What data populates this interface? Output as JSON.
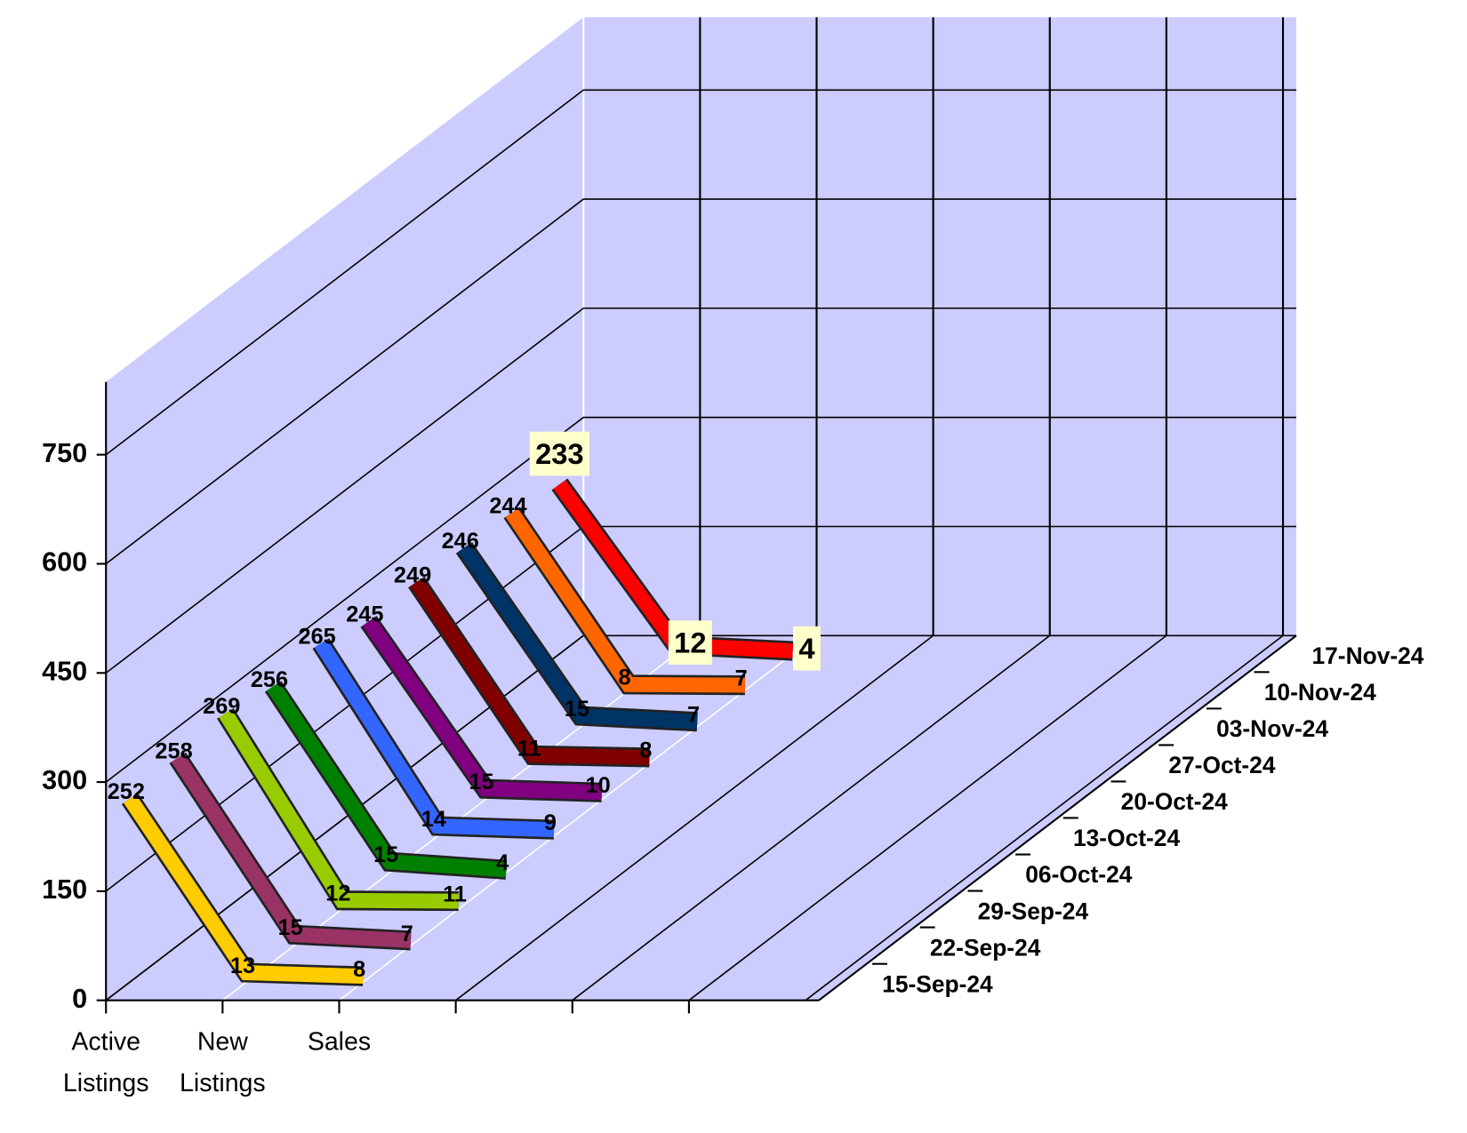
{
  "chart_data": {
    "type": "line3d",
    "categories": [
      "Active Listings",
      "New Listings",
      "Sales"
    ],
    "series": [
      {
        "name": "15-Sep-24",
        "color": "#ffcc00",
        "values": [
          252,
          13,
          8
        ]
      },
      {
        "name": "22-Sep-24",
        "color": "#993366",
        "values": [
          258,
          15,
          7
        ]
      },
      {
        "name": "29-Sep-24",
        "color": "#99cc00",
        "values": [
          269,
          12,
          11
        ]
      },
      {
        "name": "06-Oct-24",
        "color": "#008000",
        "values": [
          256,
          15,
          4
        ]
      },
      {
        "name": "13-Oct-24",
        "color": "#3366ff",
        "values": [
          265,
          14,
          9
        ]
      },
      {
        "name": "20-Oct-24",
        "color": "#800080",
        "values": [
          245,
          15,
          10
        ]
      },
      {
        "name": "27-Oct-24",
        "color": "#800000",
        "values": [
          249,
          11,
          8
        ]
      },
      {
        "name": "03-Nov-24",
        "color": "#003366",
        "values": [
          246,
          15,
          7
        ]
      },
      {
        "name": "10-Nov-24",
        "color": "#ff6600",
        "values": [
          244,
          8,
          7
        ]
      },
      {
        "name": "17-Nov-24",
        "color": "#ff0000",
        "values": [
          233,
          12,
          4
        ]
      }
    ],
    "ylim": [
      0,
      850
    ],
    "yticks": [
      0,
      150,
      300,
      450,
      600,
      750
    ],
    "grid": true
  }
}
